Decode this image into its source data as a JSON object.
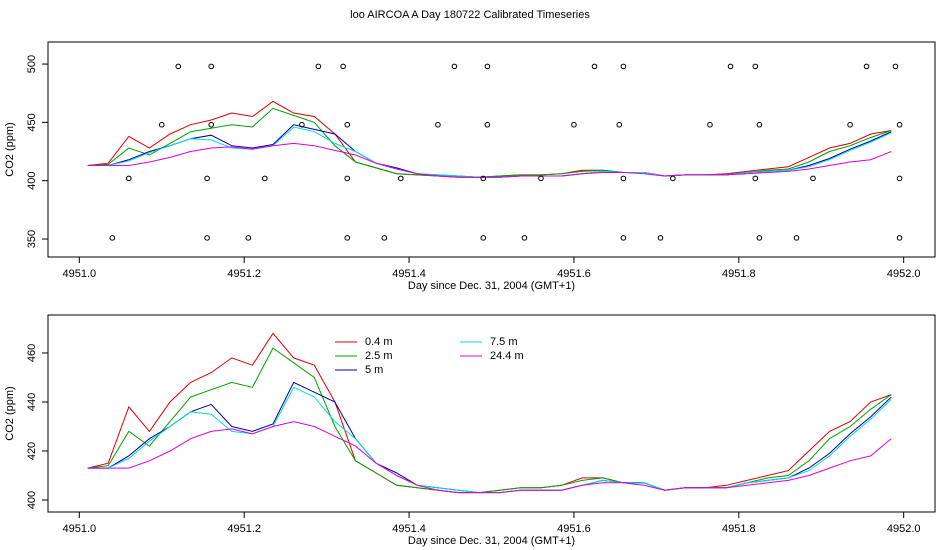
{
  "title": "loo AIRCOA A  Day 180722  Calibrated Timeseries",
  "chart_data": [
    {
      "type": "line",
      "xlabel": "Day since Dec. 31, 2004 (GMT+1)",
      "ylabel": "CO2 (ppm)",
      "xlim": [
        4950.962,
        4952.038
      ],
      "ylim": [
        334.6,
        518.9
      ],
      "xticks": [
        {
          "value": 4951.0,
          "label": "4951.0"
        },
        {
          "value": 4951.2,
          "label": "4951.2"
        },
        {
          "value": 4951.4,
          "label": "4951.4"
        },
        {
          "value": 4951.6,
          "label": "4951.6"
        },
        {
          "value": 4951.8,
          "label": "4951.8"
        },
        {
          "value": 4952.0,
          "label": "4952.0"
        }
      ],
      "yticks": [
        350,
        400,
        450,
        500
      ],
      "x": [
        4951.01,
        4951.035,
        4951.06,
        4951.085,
        4951.11,
        4951.135,
        4951.16,
        4951.185,
        4951.21,
        4951.235,
        4951.26,
        4951.285,
        4951.31,
        4951.335,
        4951.36,
        4951.385,
        4951.41,
        4951.435,
        4951.46,
        4951.485,
        4951.51,
        4951.535,
        4951.56,
        4951.585,
        4951.61,
        4951.635,
        4951.66,
        4951.685,
        4951.71,
        4951.735,
        4951.76,
        4951.785,
        4951.81,
        4951.835,
        4951.86,
        4951.885,
        4951.91,
        4951.935,
        4951.96,
        4951.985
      ],
      "series": [
        {
          "color": "#dd0000",
          "values": [
            413,
            415,
            438,
            428,
            440,
            448,
            452,
            458,
            455,
            468,
            458,
            455,
            440,
            416,
            411,
            406,
            405,
            404,
            403,
            403,
            404,
            405,
            405,
            406,
            409,
            409,
            407,
            407,
            404,
            405,
            405,
            406,
            408,
            410,
            412,
            420,
            428,
            432,
            440,
            443
          ]
        },
        {
          "color": "#00a000",
          "values": [
            413,
            414,
            428,
            422,
            432,
            442,
            445,
            448,
            446,
            462,
            456,
            450,
            430,
            416,
            411,
            406,
            405,
            404,
            403,
            403,
            404,
            405,
            405,
            406,
            408,
            409,
            407,
            407,
            404,
            405,
            405,
            405,
            407,
            409,
            410,
            416,
            425,
            430,
            437,
            443
          ]
        },
        {
          "color": "#0000a0",
          "values": [
            413,
            413,
            418,
            425,
            430,
            436,
            439,
            430,
            428,
            431,
            448,
            444,
            440,
            425,
            415,
            411,
            406,
            405,
            404,
            403,
            403,
            404,
            404,
            404,
            406,
            408,
            407,
            407,
            404,
            405,
            405,
            405,
            407,
            408,
            409,
            413,
            419,
            427,
            434,
            442
          ]
        },
        {
          "color": "#00dddd",
          "values": [
            413,
            413,
            417,
            424,
            430,
            436,
            435,
            428,
            427,
            430,
            446,
            442,
            432,
            425,
            415,
            410,
            406,
            405,
            404,
            403,
            403,
            404,
            404,
            404,
            406,
            408,
            407,
            407,
            404,
            405,
            405,
            405,
            407,
            408,
            409,
            412,
            418,
            426,
            433,
            441
          ]
        },
        {
          "color": "#dd00dd",
          "values": [
            413,
            413,
            413,
            416,
            420,
            425,
            428,
            429,
            427,
            430,
            432,
            430,
            426,
            422,
            415,
            410,
            406,
            404,
            403,
            403,
            403,
            404,
            404,
            404,
            406,
            407,
            407,
            406,
            404,
            405,
            405,
            405,
            406,
            407,
            408,
            410,
            413,
            416,
            418,
            425
          ]
        }
      ],
      "points": {
        "color": "#000000",
        "x": [
          4951.12,
          4951.16,
          4951.29,
          4951.32,
          4951.455,
          4951.495,
          4951.625,
          4951.66,
          4951.79,
          4951.82,
          4951.955,
          4951.99,
          4951.1,
          4951.16,
          4951.27,
          4951.325,
          4951.435,
          4951.495,
          4951.6,
          4951.655,
          4951.765,
          4951.825,
          4951.935,
          4951.995,
          4951.06,
          4951.155,
          4951.225,
          4951.325,
          4951.39,
          4951.49,
          4951.56,
          4951.66,
          4951.72,
          4951.82,
          4951.89,
          4951.995,
          4951.04,
          4951.155,
          4951.205,
          4951.325,
          4951.37,
          4951.49,
          4951.54,
          4951.66,
          4951.705,
          4951.825,
          4951.87,
          4951.995
        ],
        "values": [
          498,
          498,
          498,
          498,
          498,
          498,
          498,
          498,
          498,
          498,
          498,
          498,
          448,
          448,
          448,
          448,
          448,
          448,
          448,
          448,
          448,
          448,
          448,
          448,
          402,
          402,
          402,
          402,
          402,
          402,
          402,
          402,
          402,
          402,
          402,
          402,
          351,
          351,
          351,
          351,
          351,
          351,
          351,
          351,
          351,
          351,
          351,
          351
        ]
      }
    },
    {
      "type": "line",
      "xlabel": "Day since Dec. 31, 2004 (GMT+1)",
      "ylabel": "CO2 (ppm)",
      "xlim": [
        4950.962,
        4952.038
      ],
      "ylim": [
        395.1,
        475.5
      ],
      "xticks": [
        {
          "value": 4951.0,
          "label": "4951.0"
        },
        {
          "value": 4951.2,
          "label": "4951.2"
        },
        {
          "value": 4951.4,
          "label": "4951.4"
        },
        {
          "value": 4951.6,
          "label": "4951.6"
        },
        {
          "value": 4951.8,
          "label": "4951.8"
        },
        {
          "value": 4952.0,
          "label": "4952.0"
        }
      ],
      "yticks": [
        400,
        420,
        440,
        460
      ],
      "x": [
        4951.01,
        4951.035,
        4951.06,
        4951.085,
        4951.11,
        4951.135,
        4951.16,
        4951.185,
        4951.21,
        4951.235,
        4951.26,
        4951.285,
        4951.31,
        4951.335,
        4951.36,
        4951.385,
        4951.41,
        4951.435,
        4951.46,
        4951.485,
        4951.51,
        4951.535,
        4951.56,
        4951.585,
        4951.61,
        4951.635,
        4951.66,
        4951.685,
        4951.71,
        4951.735,
        4951.76,
        4951.785,
        4951.81,
        4951.835,
        4951.86,
        4951.885,
        4951.91,
        4951.935,
        4951.96,
        4951.985
      ],
      "series": [
        {
          "name": "0.4 m",
          "color": "#dd0000",
          "values": [
            413,
            415,
            438,
            428,
            440,
            448,
            452,
            458,
            455,
            468,
            458,
            455,
            440,
            416,
            411,
            406,
            405,
            404,
            403,
            403,
            404,
            405,
            405,
            406,
            409,
            409,
            407,
            407,
            404,
            405,
            405,
            406,
            408,
            410,
            412,
            420,
            428,
            432,
            440,
            443
          ]
        },
        {
          "name": "2.5 m",
          "color": "#00a000",
          "values": [
            413,
            414,
            428,
            422,
            432,
            442,
            445,
            448,
            446,
            462,
            456,
            450,
            430,
            416,
            411,
            406,
            405,
            404,
            403,
            403,
            404,
            405,
            405,
            406,
            408,
            409,
            407,
            407,
            404,
            405,
            405,
            405,
            407,
            409,
            410,
            416,
            425,
            430,
            437,
            443
          ]
        },
        {
          "name": "5 m",
          "color": "#0000a0",
          "values": [
            413,
            413,
            418,
            425,
            430,
            436,
            439,
            430,
            428,
            431,
            448,
            444,
            440,
            425,
            415,
            411,
            406,
            405,
            404,
            403,
            403,
            404,
            404,
            404,
            406,
            408,
            407,
            407,
            404,
            405,
            405,
            405,
            407,
            408,
            409,
            413,
            419,
            427,
            434,
            442
          ]
        },
        {
          "name": "7.5 m",
          "color": "#00dddd",
          "values": [
            413,
            413,
            417,
            424,
            430,
            436,
            435,
            428,
            427,
            430,
            446,
            442,
            432,
            425,
            415,
            410,
            406,
            405,
            404,
            403,
            403,
            404,
            404,
            404,
            406,
            408,
            407,
            407,
            404,
            405,
            405,
            405,
            407,
            408,
            409,
            412,
            418,
            426,
            433,
            441
          ]
        },
        {
          "name": "24.4 m",
          "color": "#dd00dd",
          "values": [
            413,
            413,
            413,
            416,
            420,
            425,
            428,
            429,
            427,
            430,
            432,
            430,
            426,
            422,
            415,
            410,
            406,
            404,
            403,
            403,
            403,
            404,
            404,
            404,
            406,
            407,
            407,
            406,
            404,
            405,
            405,
            405,
            406,
            407,
            408,
            410,
            413,
            416,
            418,
            425
          ]
        }
      ]
    }
  ]
}
